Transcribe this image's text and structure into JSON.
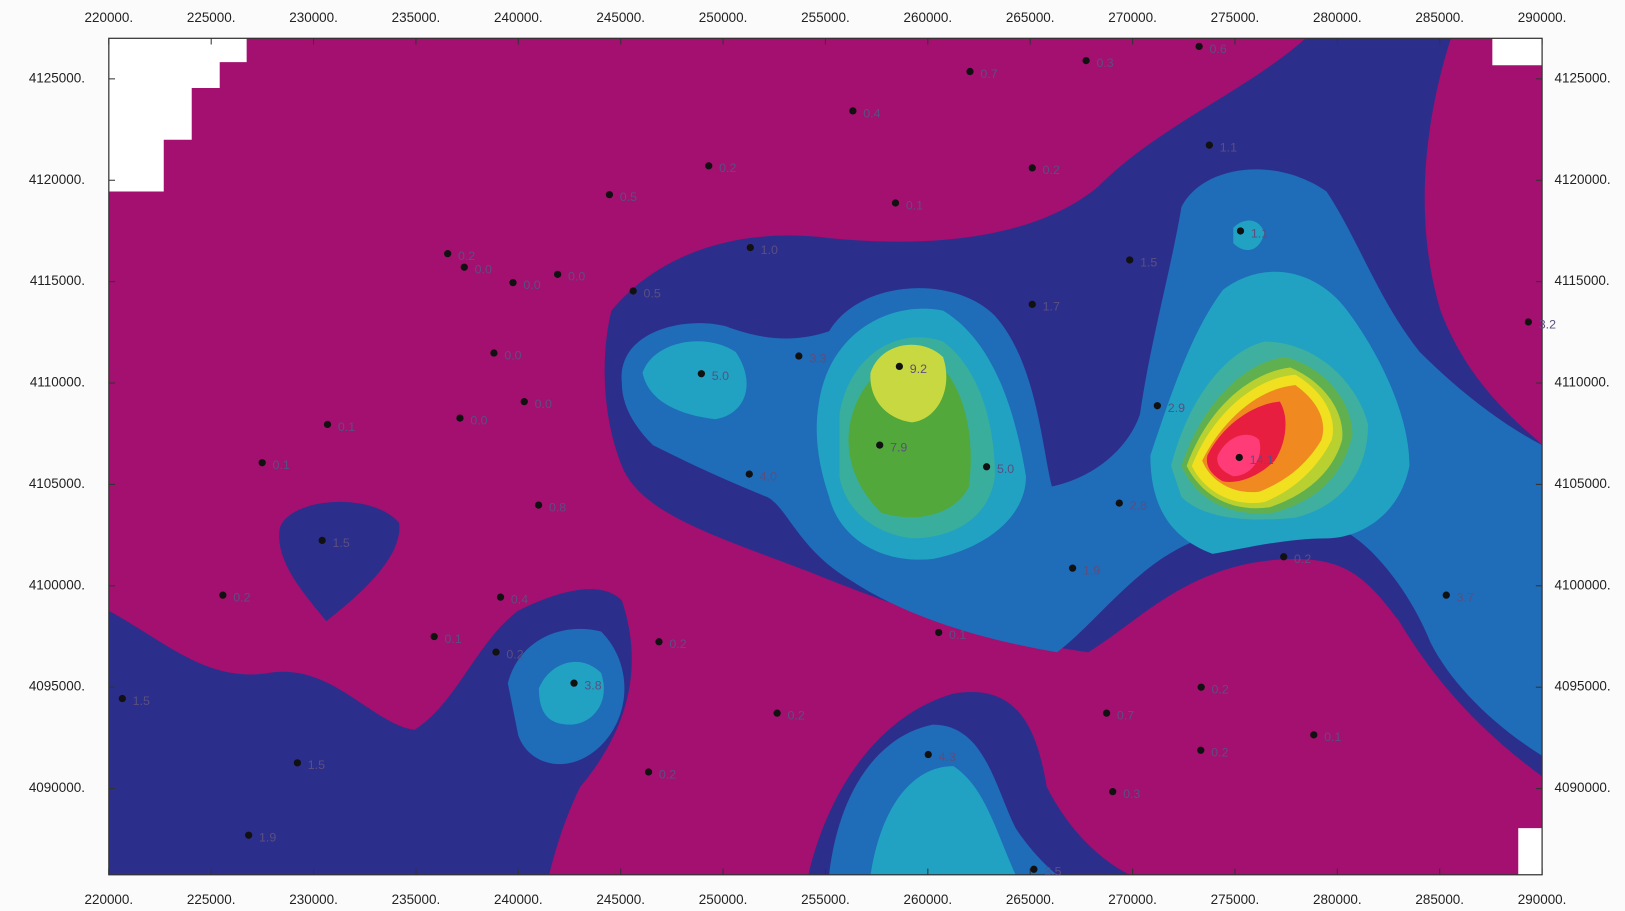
{
  "chart_data": {
    "type": "scatter",
    "x": [
      273250,
      267730,
      262060,
      256340,
      273750,
      249300,
      265100,
      244450,
      258420,
      275270,
      251330,
      236550,
      237360,
      269860,
      239740,
      241920,
      245610,
      265100,
      289330,
      238810,
      253700,
      258610,
      248940,
      240290,
      271210,
      237150,
      230680,
      257650,
      275210,
      227490,
      262870,
      251280,
      269350,
      240990,
      230420,
      277380,
      267070,
      225570,
      239130,
      285320,
      260530,
      235890,
      246870,
      238910,
      242720,
      273350,
      220660,
      252640,
      268730,
      278850,
      260020,
      273330,
      229210,
      246360,
      269030,
      226830,
      265180
    ],
    "y": [
      4126600,
      4125900,
      4125360,
      4123420,
      4121730,
      4120710,
      4120610,
      4119290,
      4118880,
      4117500,
      4116680,
      4116380,
      4115710,
      4116070,
      4114950,
      4115360,
      4114540,
      4113880,
      4113010,
      4111480,
      4111330,
      4110820,
      4110460,
      4109080,
      4108880,
      4108270,
      4107960,
      4106940,
      4106330,
      4106070,
      4105870,
      4105510,
      4104080,
      4103980,
      4102240,
      4101430,
      4100870,
      4099540,
      4099440,
      4099540,
      4097700,
      4097500,
      4097240,
      4096730,
      4095200,
      4095000,
      4094440,
      4093720,
      4093720,
      4092650,
      4091680,
      4091890,
      4091270,
      4090820,
      4089850,
      4087700,
      4086020
    ],
    "values": [
      0.6,
      0.3,
      0.7,
      0.4,
      1.1,
      0.2,
      0.2,
      0.5,
      0.1,
      1.1,
      1.0,
      0.2,
      0.0,
      1.5,
      0.0,
      0.0,
      0.5,
      1.7,
      3.2,
      0.0,
      3.3,
      9.2,
      5.0,
      0.0,
      2.9,
      0.0,
      0.1,
      7.9,
      14.1,
      0.1,
      5.0,
      4.0,
      2.8,
      0.8,
      1.5,
      0.2,
      1.9,
      0.2,
      0.4,
      3.7,
      0.1,
      0.1,
      0.2,
      0.2,
      3.8,
      0.2,
      1.5,
      0.2,
      0.7,
      0.1,
      4.3,
      0.2,
      1.5,
      0.2,
      0.3,
      1.9,
      3.5
    ],
    "value_labels": [
      "0.6",
      "0.3",
      "0.7",
      "0.4",
      "1.1",
      "0.2",
      "0.2",
      "0.5",
      "0.1",
      "1.1",
      "1.0",
      "0.2",
      "0.0",
      "1.5",
      "0.0",
      "0.0",
      "0.5",
      "1.7",
      "3.2",
      "0.0",
      "3.3",
      "9.2",
      "5.0",
      "0.0",
      "2.9",
      "0.0",
      "0.1",
      "7.9",
      "14.1",
      "0.1",
      "5.0",
      "4.0",
      "2.8",
      "0.8",
      "1.5",
      "0.2",
      "1.9",
      "0.2",
      "0.4",
      "3.7",
      "0.1",
      "0.1",
      "0.2",
      "0.2",
      "3.8",
      "0.2",
      "1.5",
      "0.2",
      "0.7",
      "0.1",
      "4.3",
      "0.2",
      "1.5",
      "0.2",
      "0.3",
      "1.9",
      "3.5"
    ],
    "xlim": [
      220000,
      290000
    ],
    "ylim": [
      4085750,
      4127000
    ],
    "xticks": [
      {
        "value": 220000,
        "label": "220000."
      },
      {
        "value": 225000,
        "label": "225000."
      },
      {
        "value": 230000,
        "label": "230000."
      },
      {
        "value": 235000,
        "label": "235000."
      },
      {
        "value": 240000,
        "label": "240000."
      },
      {
        "value": 245000,
        "label": "245000."
      },
      {
        "value": 250000,
        "label": "250000."
      },
      {
        "value": 255000,
        "label": "255000."
      },
      {
        "value": 260000,
        "label": "260000."
      },
      {
        "value": 265000,
        "label": "265000."
      },
      {
        "value": 270000,
        "label": "270000."
      },
      {
        "value": 275000,
        "label": "275000."
      },
      {
        "value": 280000,
        "label": "280000."
      },
      {
        "value": 285000,
        "label": "285000."
      },
      {
        "value": 290000,
        "label": "290000."
      }
    ],
    "yticks": [
      {
        "value": 4090000,
        "label": "4090000."
      },
      {
        "value": 4095000,
        "label": "4095000."
      },
      {
        "value": 4100000,
        "label": "4100000."
      },
      {
        "value": 4105000,
        "label": "4105000."
      },
      {
        "value": 4110000,
        "label": "4110000."
      },
      {
        "value": 4115000,
        "label": "4115000."
      },
      {
        "value": 4120000,
        "label": "4120000."
      },
      {
        "value": 4125000,
        "label": "4125000."
      }
    ],
    "color": "#111111"
  }
}
